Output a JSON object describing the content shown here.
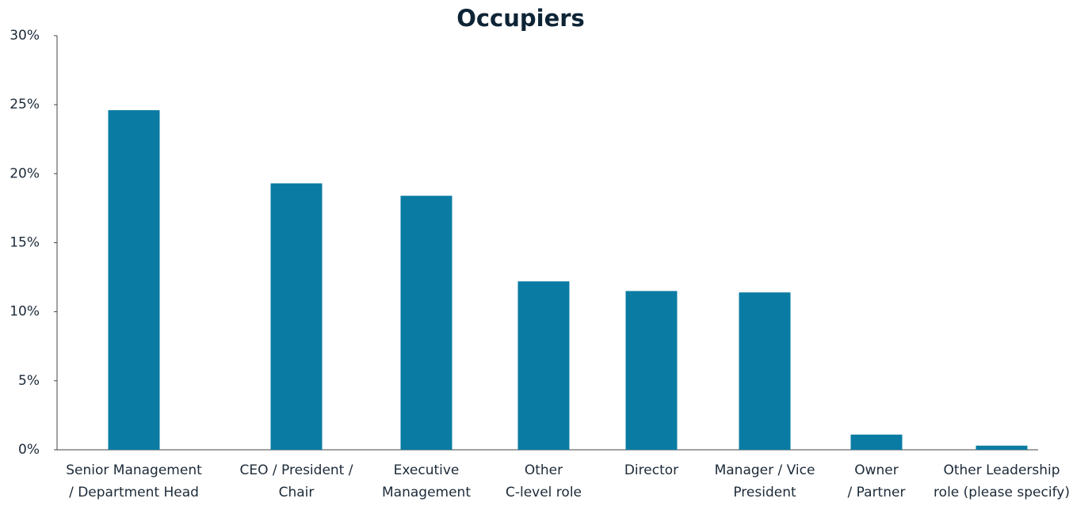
{
  "chart_data": {
    "type": "bar",
    "title": "Occupiers",
    "categories": [
      [
        "Senior Management",
        "/ Department Head"
      ],
      [
        "CEO / President /",
        "Chair"
      ],
      [
        "Executive",
        "Management"
      ],
      [
        "Other",
        "C-level role"
      ],
      [
        "Director"
      ],
      [
        "Manager / Vice",
        "President"
      ],
      [
        "Owner",
        "/ Partner"
      ],
      [
        "Other Leadership",
        "role (please specify)"
      ]
    ],
    "values": [
      24.6,
      19.3,
      18.4,
      12.2,
      11.5,
      11.4,
      1.1,
      0.3
    ],
    "color": "#0a7ba3",
    "ylim": [
      0,
      30
    ],
    "yticks": [
      {
        "value": 0,
        "label": "0%"
      },
      {
        "value": 5,
        "label": "5%"
      },
      {
        "value": 10,
        "label": "10%"
      },
      {
        "value": 15,
        "label": "15%"
      },
      {
        "value": 20,
        "label": "20%"
      },
      {
        "value": 25,
        "label": "25%"
      },
      {
        "value": 30,
        "label": "30%"
      }
    ],
    "grid": false
  }
}
